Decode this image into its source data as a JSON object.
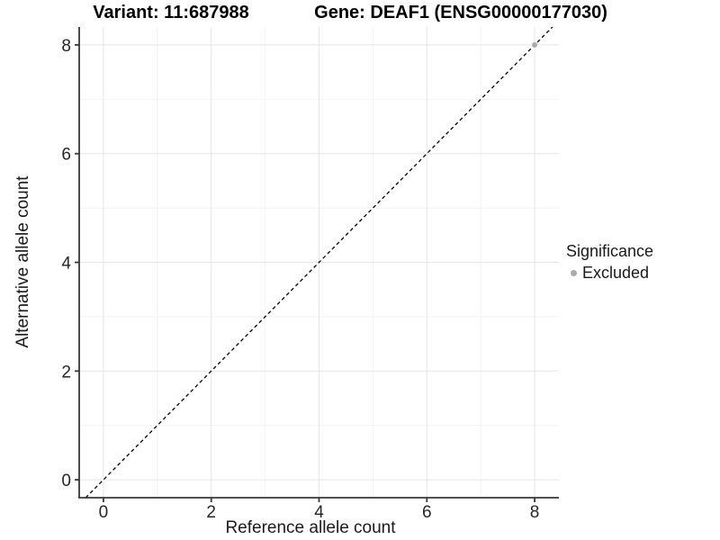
{
  "chart_data": {
    "type": "scatter",
    "title_left": "Variant: 11:687988",
    "title_right": "Gene: DEAF1 (ENSG00000177030)",
    "xlabel": "Reference allele count",
    "ylabel": "Alternative allele count",
    "xlim": [
      -0.45,
      8.45
    ],
    "ylim": [
      -0.33,
      8.33
    ],
    "xticks": [
      0,
      2,
      4,
      6,
      8
    ],
    "yticks": [
      0,
      2,
      4,
      6,
      8
    ],
    "x_minor_ticks": [
      1,
      3,
      5,
      7
    ],
    "y_minor_ticks": [
      1,
      3,
      5,
      7
    ],
    "grid": "major+minor",
    "series": [
      {
        "name": "Excluded",
        "color": "#ababab",
        "points": [
          {
            "x": 8,
            "y": 8
          }
        ]
      }
    ],
    "reference_line": {
      "type": "identity y=x",
      "style": "dashed",
      "color": "#000000"
    },
    "legend": {
      "title": "Significance",
      "position": "right",
      "items": [
        {
          "label": "Excluded",
          "color": "#ababab"
        }
      ]
    },
    "style": {
      "grid_major_color": "#e5e5e5",
      "grid_minor_color": "#f2f2f2",
      "axis_color": "#383838",
      "tick_label_color": "#262626",
      "background": "#ffffff"
    }
  }
}
